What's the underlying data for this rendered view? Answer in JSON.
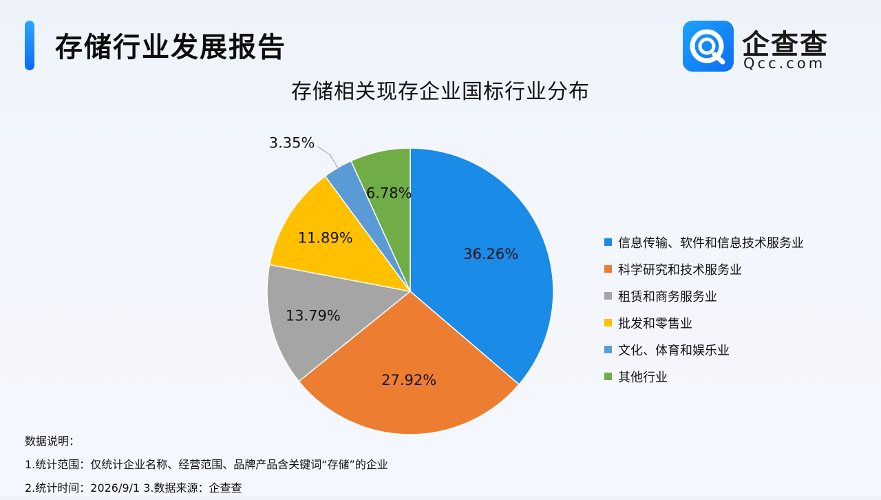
{
  "header": {
    "title": "存储行业发展报告",
    "logo_cn": "企查查",
    "logo_en": "Qcc.com",
    "logo_icon": "qcc-logo-icon"
  },
  "chart_data": {
    "type": "pie",
    "title": "存储相关现存企业国标行业分布",
    "legend_position": "right",
    "slices": [
      {
        "label": "信息传输、软件和信息技术服务业",
        "value": 36.26,
        "display": "36.26%",
        "color": "#1b8be8"
      },
      {
        "label": "科学研究和技术服务业",
        "value": 27.92,
        "display": "27.92%",
        "color": "#ed7d31"
      },
      {
        "label": "租赁和商务服务业",
        "value": 13.79,
        "display": "13.79%",
        "color": "#a5a5a5"
      },
      {
        "label": "批发和零售业",
        "value": 11.89,
        "display": "11.89%",
        "color": "#ffc000"
      },
      {
        "label": "文化、体育和娱乐业",
        "value": 3.35,
        "display": "3.35%",
        "color": "#5b9bd5"
      },
      {
        "label": "其他行业",
        "value": 6.78,
        "display": "6.78%",
        "color": "#70ad47"
      }
    ]
  },
  "notes": {
    "heading": "数据说明：",
    "line1": "1.统计范围：仅统计企业名称、经营范围、品牌产品含关键词“存储”的企业",
    "line2": "2.统计时间：2026/9/1  3.数据来源：企查查"
  }
}
